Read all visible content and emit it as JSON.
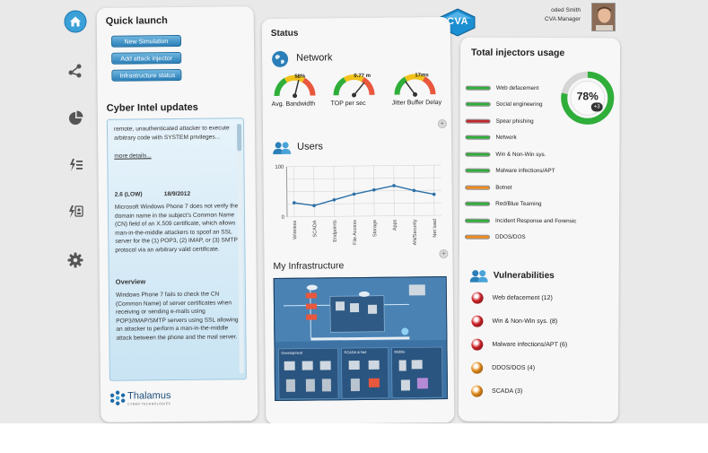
{
  "header": {
    "logo_text": "CVA",
    "user_name": "oded Smith",
    "user_role": "CVA Manager",
    "avatar_icon": "avatar-photo"
  },
  "sidebar": {
    "items": [
      {
        "icon": "home-icon",
        "active": true
      },
      {
        "icon": "network-nodes-icon",
        "active": false
      },
      {
        "icon": "pie-chart-icon",
        "active": false
      },
      {
        "icon": "attack-list-icon",
        "active": false
      },
      {
        "icon": "attack-report-icon",
        "active": false
      },
      {
        "icon": "gear-icon",
        "active": false
      }
    ]
  },
  "quick_launch": {
    "title": "Quick launch",
    "buttons": [
      "New Simulation",
      "Add attack injector",
      "Infrastructure status"
    ]
  },
  "cyber_intel": {
    "title": "Cyber Intel updates",
    "intro_text": "remote, unauthenticated attacker to execute arbitrary code with SYSTEM privileges...",
    "more_link": "more details...",
    "score": "2.6 (LOW)",
    "date": "18/9/2012",
    "body": "Microsoft Windows Phone 7 does not verify the domain name in the subject's Common Name (CN) field of an X.509 certificate, which allows man-in-the-middle attackers to spoof an SSL server for the (1) POP3, (2) IMAP, or (3) SMTP protocol via an arbitrary valid certificate.",
    "overview_heading": "Overview",
    "overview_text": "Windows Phone 7 fails to check the CN (Common Name) of server certificates when receiving or sending e-mails using POP3/IMAP/SMTP servers using SSL allowing an attacker to perform a man-in-the-middle attack between the phone and the mail server.",
    "brand": "Thalamus",
    "brand_sub": "CYBER TECHNOLOGIES"
  },
  "status": {
    "title": "Status",
    "network": {
      "title": "Network",
      "gauges": [
        {
          "value_label": "58%",
          "label": "Avg. Bandwidth",
          "level": 0.58
        },
        {
          "value_label": "0.77 m",
          "label": "TOP per sec",
          "level": 0.72
        },
        {
          "value_label": "17ms",
          "label": "Jitter Buffer Delay",
          "level": 0.3
        }
      ]
    },
    "users": {
      "title": "Users"
    },
    "infrastructure": {
      "title": "My Infrastructure",
      "zones": [
        "Development",
        "SCADA & Net",
        "Mobile"
      ]
    }
  },
  "injectors": {
    "title": "Total injectors usage",
    "donut_value": "78%",
    "donut_badge": "+3",
    "donut_level": 0.78,
    "items": [
      {
        "label": "Web defacement",
        "color": "#2fae3a"
      },
      {
        "label": "Social engineering",
        "color": "#2fae3a"
      },
      {
        "label": "Spear phishing",
        "color": "#c2272d"
      },
      {
        "label": "Network",
        "color": "#2fae3a"
      },
      {
        "label": "Win & Non-Win sys.",
        "color": "#2fae3a"
      },
      {
        "label": "Malware infections/APT",
        "color": "#2fae3a"
      },
      {
        "label": "Botnet",
        "color": "#f08a1c"
      },
      {
        "label": "Red/Blue Teaming",
        "color": "#2fae3a"
      },
      {
        "label": "Incident Response and Forensic",
        "color": "#2fae3a"
      },
      {
        "label": "DDOS/DOS",
        "color": "#f08a1c"
      }
    ]
  },
  "vulnerabilities": {
    "title": "Vulnerabilities",
    "items": [
      {
        "label": "Web defacement (12)",
        "color": "#d9262c"
      },
      {
        "label": "Win & Non-Win sys. (8)",
        "color": "#d9262c"
      },
      {
        "label": "Malware infections/APT (6)",
        "color": "#d9262c"
      },
      {
        "label": "DDOS/DOS (4)",
        "color": "#f0931f"
      },
      {
        "label": "SCADA (3)",
        "color": "#f0931f"
      }
    ]
  },
  "chart_data": {
    "type": "line",
    "title": "",
    "categories": [
      "Wireless",
      "SCADA",
      "Endpoints",
      "File Access",
      "Storage",
      "Apps",
      "AN/Security",
      "Net load"
    ],
    "series": [
      {
        "values": [
          28,
          22,
          33,
          44,
          52,
          60,
          50,
          42
        ]
      }
    ],
    "ylim": [
      0,
      100
    ],
    "yticks": [
      "0",
      "100"
    ],
    "grid": true
  }
}
